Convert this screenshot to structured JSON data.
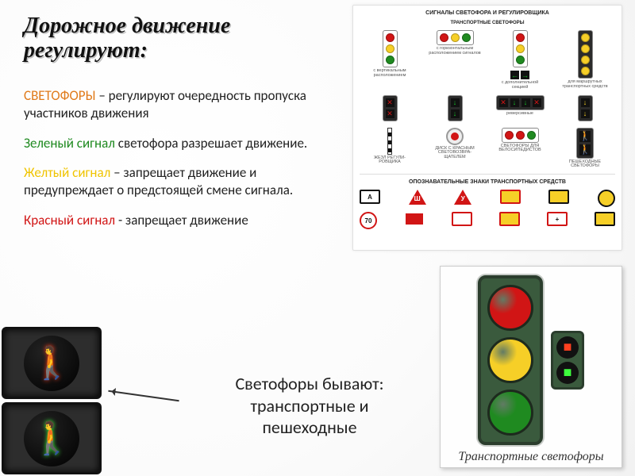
{
  "title_line1": "Дорожное движение",
  "title_line2": "регулируют:",
  "title_fontsize": 28,
  "text_fontsize": 17,
  "types_fontsize": 22,
  "para_intro": {
    "lead": "СВЕТОФОРЫ",
    "rest": " – регулируют очередность пропуска участников движения"
  },
  "para_green": {
    "lead": "   Зеленый сигнал",
    "rest": " светофора разрешает движение."
  },
  "para_yellow": {
    "lead": "   Желтый сигнал",
    "rest": " – запрещает движение и предупреждает о предстоящей смене сигнала."
  },
  "para_red": {
    "lead": "   Красный сигнал",
    "rest": " - запрещает движение"
  },
  "types_line1": "Светофоры бывают:",
  "types_line2": "транспортные и",
  "types_line3": "пешеходные",
  "colors": {
    "red": "#d11515",
    "yellow": "#f6cf27",
    "green": "#1f8a20",
    "arrow_green": "#17c22a",
    "housing_dark": "#2b2b2b",
    "housing_olive": "#3a5a3d",
    "bg": "#ffffff",
    "cap": "#6a6a6a"
  },
  "chart": {
    "title_a": "СИГНАЛЫ СВЕТОФОРА И РЕГУЛИРОВЩИКА",
    "subtitle_a": "ТРАНСПОРТНЫЕ СВЕТОФОРЫ",
    "title_b": "ОПОЗНАВАТЕЛЬНЫЕ ЗНАКИ ТРАНСПОРТНЫХ СРЕДСТВ",
    "row1": [
      {
        "dir": "v",
        "lamps": [
          "#d11515",
          "#f6cf27",
          "#1f8a20"
        ],
        "bg": "#fff",
        "cap": "с вертикальным\nрасположением"
      },
      {
        "dir": "h",
        "lamps": [
          "#d11515",
          "#f6cf27",
          "#1f8a20"
        ],
        "bg": "#fff",
        "cap": "с горизонтальным\nрасположением сигналов"
      },
      {
        "dir": "v",
        "lamps": [
          "#d11515",
          "#f6cf27",
          "#1f8a20"
        ],
        "extra": "arrow",
        "bg": "#fff",
        "cap": "с дополнительной\nсекцией"
      },
      {
        "dir": "v",
        "lamps": [
          "#f6cf27",
          "#f6cf27",
          "#f6cf27",
          "#f6cf27"
        ],
        "bg": "#2b2b2b",
        "cap": "для маршрутных\nтранспортных средств"
      }
    ],
    "row2": [
      {
        "dir": "v",
        "sq": true,
        "glyph": "✕",
        "glyphcolor": "#d11515",
        "bg": "#2b2b2b",
        "n": 2,
        "cap": ""
      },
      {
        "dir": "v",
        "sq": true,
        "glyph": "↓",
        "glyphcolor": "#17c22a",
        "bg": "#2b2b2b",
        "n": 2,
        "cap": ""
      },
      {
        "dir": "h",
        "sq": true,
        "mixed": [
          "✕",
          "↓",
          "↓",
          "✕"
        ],
        "mixedcolor": [
          "#d11515",
          "#17c22a",
          "#17c22a",
          "#d11515"
        ],
        "bg": "#2b2b2b",
        "cap": "реверсивные"
      },
      {
        "dir": "v",
        "sq": true,
        "glyph": "↓",
        "glyphcolor": "#f6cf27",
        "bg": "#2b2b2b",
        "n": 2,
        "cap": ""
      }
    ],
    "row3": [
      {
        "type": "stick",
        "cap": "ЖЕЗЛ РЕГУЛИ-\nРОВЩИКА"
      },
      {
        "type": "disc",
        "cap": "ДИСК С КРАСНЫМ\nСВЕТОВОЗВРА-\nЩАТЕЛЕМ"
      },
      {
        "dir": "h",
        "lamps": [
          "#d11515",
          "#d11515"
        ],
        "bg": "#fff",
        "plus_green": true,
        "cap": "СВЕТОФОРЫ ДЛЯ\nВЕЛОСИПЕДИСТОВ"
      },
      {
        "dir": "v",
        "lamps": [
          "#d11515",
          "#1f8a20"
        ],
        "bg": "#2b2b2b",
        "ped": true,
        "cap": "ПЕШЕХОДНЫЕ\nСВЕТОФОРЫ"
      }
    ],
    "signs": [
      {
        "shape": "rect",
        "bg": "#fff",
        "border": "#111",
        "text": "А"
      },
      {
        "shape": "tri",
        "text": "Ш"
      },
      {
        "shape": "tri",
        "text": "У"
      },
      {
        "shape": "rect",
        "bg": "#f6cf27",
        "border": "#d11515",
        "text": ""
      },
      {
        "shape": "rect",
        "bg": "#f6cf27",
        "border": "#111",
        "text": ""
      },
      {
        "shape": "circ",
        "bg": "#f6cf27",
        "border": "#111",
        "text": ""
      }
    ],
    "signs2": [
      {
        "shape": "circ",
        "bg": "#fff",
        "border": "#d11515",
        "text": "70"
      },
      {
        "shape": "rect",
        "bg": "#d11515",
        "border": "#fff",
        "text": ""
      },
      {
        "shape": "rect",
        "bg": "#fff",
        "border": "#d11515",
        "text": ""
      },
      {
        "shape": "rect",
        "bg": "#f6cf27",
        "border": "#d11515",
        "text": ""
      },
      {
        "shape": "rect",
        "bg": "#fff",
        "border": "#d11515",
        "text": "+"
      },
      {
        "shape": "rect",
        "bg": "#f6cf27",
        "border": "#111",
        "text": ""
      }
    ]
  },
  "trans_caption": "Транспортные светофоры",
  "trans_lamps": [
    "#d11515",
    "#f6cf27",
    "#1f8a20"
  ]
}
